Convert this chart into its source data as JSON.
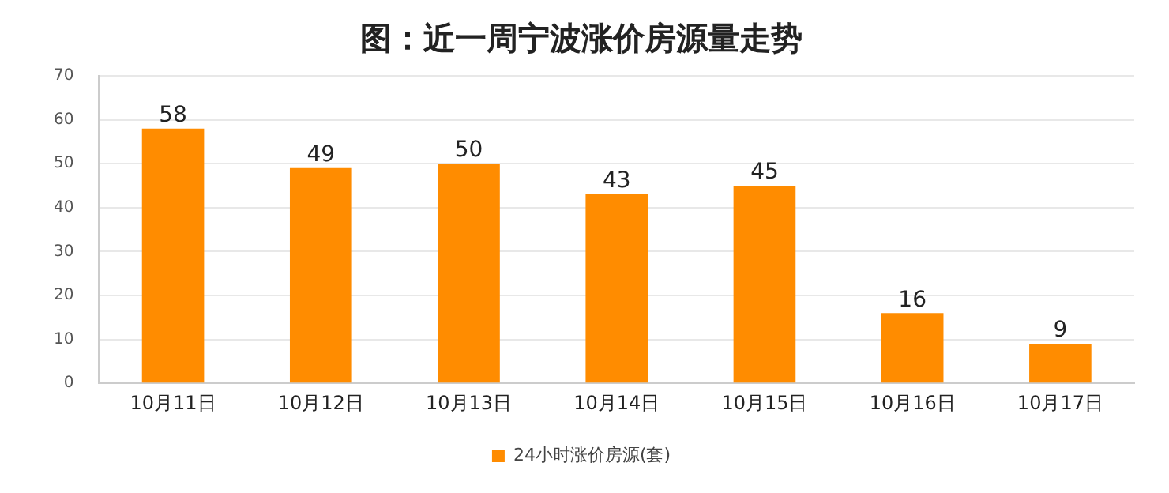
{
  "chart_data": {
    "type": "bar",
    "title": "图：近一周宁波涨价房源量走势",
    "categories": [
      "10月11日",
      "10月12日",
      "10月13日",
      "10月14日",
      "10月15日",
      "10月16日",
      "10月17日"
    ],
    "series": [
      {
        "name": "24小时涨价房源(套)",
        "color": "#ff8c00",
        "values": [
          58,
          49,
          50,
          43,
          45,
          16,
          9
        ]
      }
    ],
    "ylim": [
      0,
      70
    ],
    "yticks": [
      0,
      10,
      20,
      30,
      40,
      50,
      60,
      70
    ],
    "grid": "y",
    "legend": "bottom",
    "data_labels": true
  }
}
